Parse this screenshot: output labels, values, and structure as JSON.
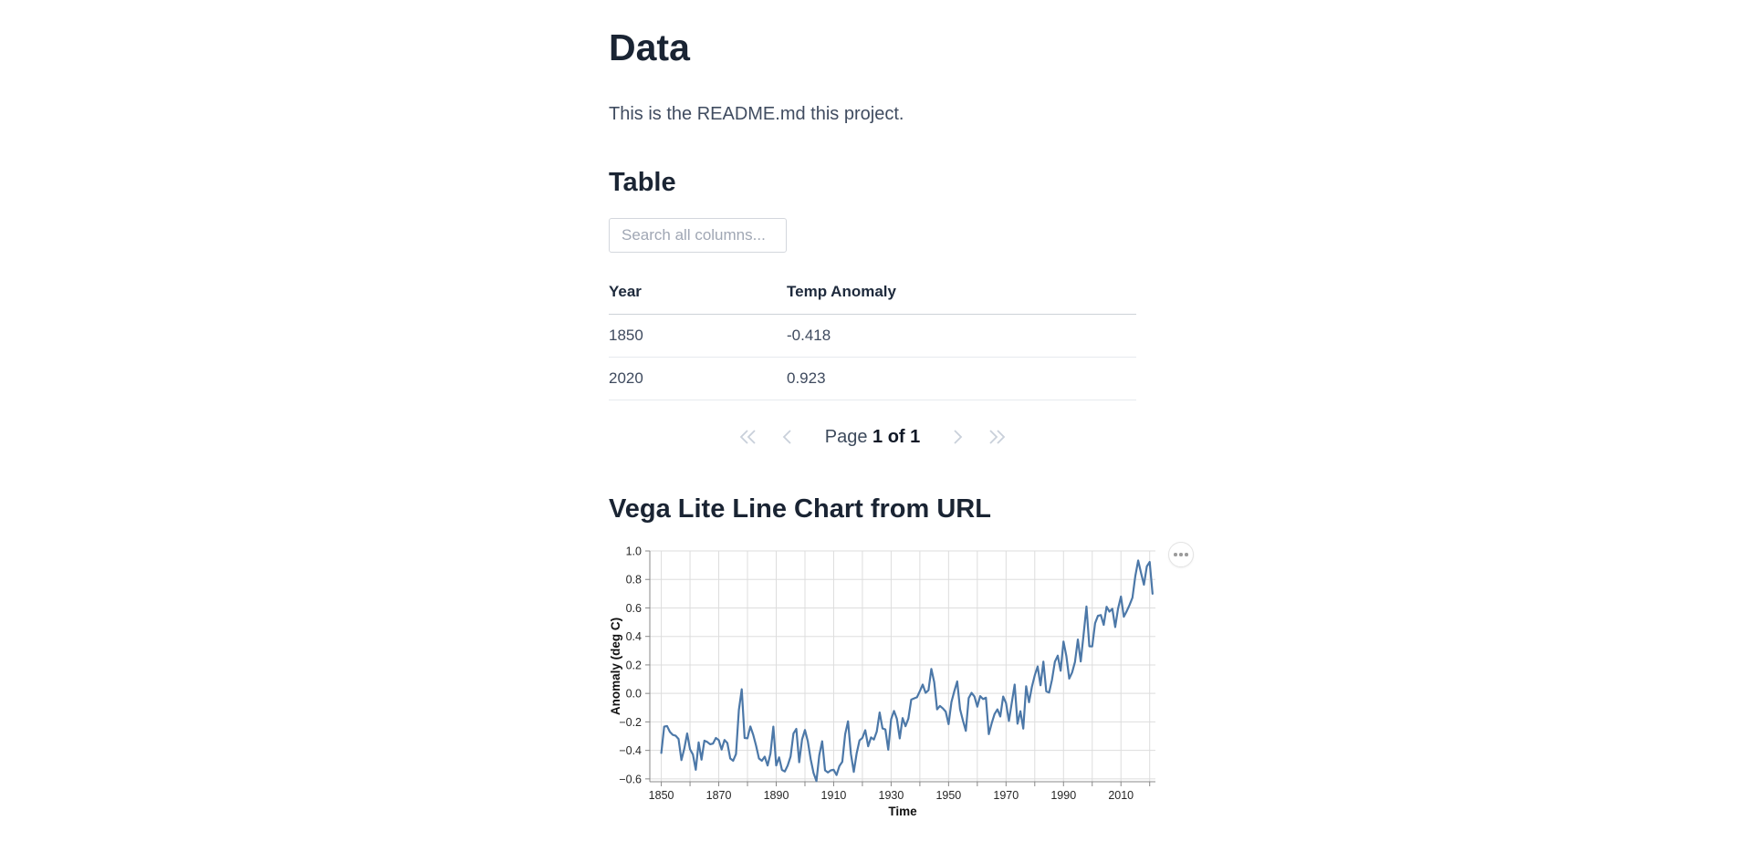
{
  "page": {
    "title": "Data",
    "readme": "This is the README.md this project."
  },
  "table_section": {
    "heading": "Table",
    "search_placeholder": "Search all columns...",
    "columns": [
      "Year",
      "Temp Anomaly"
    ],
    "rows": [
      [
        "1850",
        "-0.418"
      ],
      [
        "2020",
        "0.923"
      ]
    ],
    "pagination": {
      "page_label": "Page",
      "page_value": "1 of 1"
    }
  },
  "chart_section": {
    "heading": "Vega Lite Line Chart from URL"
  },
  "icons": {
    "pagination_first": "double-chevron-left-icon",
    "pagination_prev": "chevron-left-icon",
    "pagination_next": "chevron-right-icon",
    "pagination_last": "double-chevron-right-icon",
    "chart_menu": "ellipsis-icon"
  },
  "colors": {
    "line": "#4c78a8",
    "grid": "#dddddd",
    "axis": "#888888",
    "label": "#262626",
    "chevron": "#c9d0da"
  },
  "chart_data": {
    "type": "line",
    "title": "",
    "xlabel": "Time",
    "ylabel": "Anomaly (deg C)",
    "x_start": 1850,
    "x_step": 1,
    "x_end": 2021,
    "xlim": [
      1846,
      2022
    ],
    "ylim": [
      -0.62,
      1.0
    ],
    "x_ticks": [
      1850,
      1860,
      1870,
      1880,
      1890,
      1900,
      1910,
      1920,
      1930,
      1940,
      1950,
      1960,
      1970,
      1980,
      1990,
      2000,
      2010,
      2020
    ],
    "x_labeled_ticks": [
      1850,
      1870,
      1890,
      1910,
      1930,
      1950,
      1970,
      1990,
      2010
    ],
    "y_ticks": [
      -0.6,
      -0.4,
      -0.2,
      0.0,
      0.2,
      0.4,
      0.6,
      0.8,
      1.0
    ],
    "grid": true,
    "legend": "none",
    "values": [
      -0.418,
      -0.233,
      -0.229,
      -0.27,
      -0.291,
      -0.297,
      -0.32,
      -0.468,
      -0.388,
      -0.281,
      -0.392,
      -0.429,
      -0.536,
      -0.344,
      -0.465,
      -0.332,
      -0.341,
      -0.357,
      -0.352,
      -0.313,
      -0.328,
      -0.394,
      -0.327,
      -0.349,
      -0.457,
      -0.473,
      -0.426,
      -0.116,
      0.029,
      -0.313,
      -0.315,
      -0.232,
      -0.291,
      -0.368,
      -0.457,
      -0.473,
      -0.444,
      -0.506,
      -0.422,
      -0.233,
      -0.506,
      -0.449,
      -0.537,
      -0.548,
      -0.506,
      -0.443,
      -0.282,
      -0.249,
      -0.483,
      -0.323,
      -0.257,
      -0.336,
      -0.462,
      -0.559,
      -0.615,
      -0.433,
      -0.336,
      -0.54,
      -0.555,
      -0.54,
      -0.536,
      -0.573,
      -0.51,
      -0.48,
      -0.286,
      -0.196,
      -0.424,
      -0.551,
      -0.421,
      -0.33,
      -0.312,
      -0.258,
      -0.371,
      -0.309,
      -0.324,
      -0.268,
      -0.134,
      -0.246,
      -0.253,
      -0.395,
      -0.181,
      -0.123,
      -0.178,
      -0.316,
      -0.173,
      -0.23,
      -0.177,
      -0.044,
      -0.035,
      -0.027,
      0.016,
      0.062,
      0.004,
      0.022,
      0.172,
      0.079,
      -0.112,
      -0.088,
      -0.105,
      -0.128,
      -0.216,
      -0.06,
      0.016,
      0.084,
      -0.111,
      -0.191,
      -0.263,
      -0.033,
      0.004,
      -0.022,
      -0.093,
      -0.019,
      -0.04,
      -0.03,
      -0.286,
      -0.21,
      -0.145,
      -0.112,
      -0.162,
      -0.022,
      -0.068,
      -0.193,
      -0.066,
      0.062,
      -0.213,
      -0.125,
      -0.247,
      0.05,
      -0.062,
      0.046,
      0.127,
      0.189,
      0.057,
      0.223,
      0.015,
      0.006,
      0.096,
      0.222,
      0.265,
      0.159,
      0.364,
      0.262,
      0.104,
      0.147,
      0.221,
      0.378,
      0.224,
      0.414,
      0.61,
      0.331,
      0.33,
      0.493,
      0.545,
      0.55,
      0.481,
      0.608,
      0.574,
      0.594,
      0.466,
      0.596,
      0.68,
      0.538,
      0.577,
      0.621,
      0.672,
      0.824,
      0.933,
      0.845,
      0.763,
      0.891,
      0.923,
      0.7
    ]
  }
}
